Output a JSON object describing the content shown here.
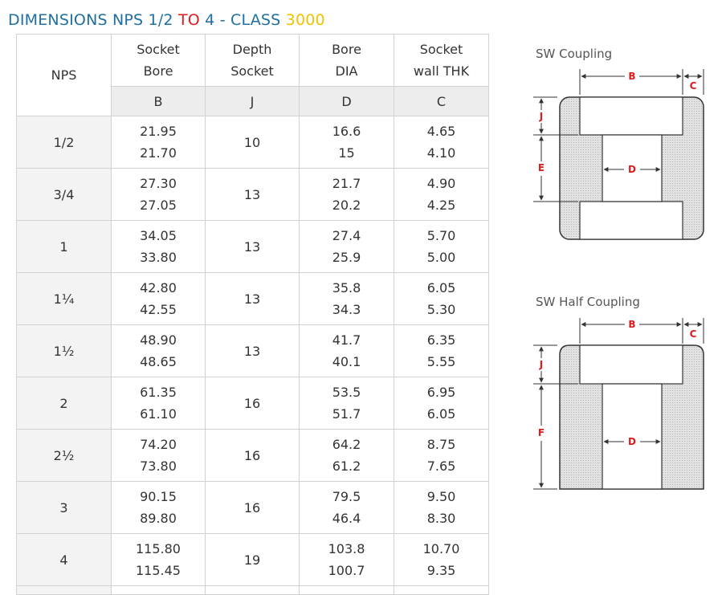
{
  "title": {
    "part1": "DIMENSIONS NPS 1/2 ",
    "part2": "TO",
    "part3": " 4 - CLASS ",
    "part4": "3000"
  },
  "table": {
    "nps_header": "NPS",
    "headers": [
      {
        "line1": "Socket",
        "line2": "Bore"
      },
      {
        "line1": "Depth",
        "line2": "Socket"
      },
      {
        "line1": "Bore",
        "line2": "DIA"
      },
      {
        "line1": "Socket",
        "line2": "wall THK"
      }
    ],
    "symbols": [
      "B",
      "J",
      "D",
      "C"
    ],
    "rows": [
      {
        "nps": "1/2",
        "b": [
          "21.95",
          "21.70"
        ],
        "j": "10",
        "d": [
          "16.6",
          "15"
        ],
        "c": [
          "4.65",
          "4.10"
        ]
      },
      {
        "nps": "3/4",
        "b": [
          "27.30",
          "27.05"
        ],
        "j": "13",
        "d": [
          "21.7",
          "20.2"
        ],
        "c": [
          "4.90",
          "4.25"
        ]
      },
      {
        "nps": "1",
        "b": [
          "34.05",
          "33.80"
        ],
        "j": "13",
        "d": [
          "27.4",
          "25.9"
        ],
        "c": [
          "5.70",
          "5.00"
        ]
      },
      {
        "nps": "1¼",
        "b": [
          "42.80",
          "42.55"
        ],
        "j": "13",
        "d": [
          "35.8",
          "34.3"
        ],
        "c": [
          "6.05",
          "5.30"
        ]
      },
      {
        "nps": "1½",
        "b": [
          "48.90",
          "48.65"
        ],
        "j": "13",
        "d": [
          "41.7",
          "40.1"
        ],
        "c": [
          "6.35",
          "5.55"
        ]
      },
      {
        "nps": "2",
        "b": [
          "61.35",
          "61.10"
        ],
        "j": "16",
        "d": [
          "53.5",
          "51.7"
        ],
        "c": [
          "6.95",
          "6.05"
        ]
      },
      {
        "nps": "2½",
        "b": [
          "74.20",
          "73.80"
        ],
        "j": "16",
        "d": [
          "64.2",
          "61.2"
        ],
        "c": [
          "8.75",
          "7.65"
        ]
      },
      {
        "nps": "3",
        "b": [
          "90.15",
          "89.80"
        ],
        "j": "16",
        "d": [
          "79.5",
          "46.4"
        ],
        "c": [
          "9.50",
          "8.30"
        ]
      },
      {
        "nps": "4",
        "b": [
          "115.80",
          "115.45"
        ],
        "j": "19",
        "d": [
          "103.8",
          "100.7"
        ],
        "c": [
          "10.70",
          "9.35"
        ]
      }
    ]
  },
  "diagrams": {
    "coupling_label": "SW Coupling",
    "half_coupling_label": "SW Half Coupling",
    "dims": {
      "b": "B",
      "c": "C",
      "j": "J",
      "e": "E",
      "d": "D",
      "f": "F"
    }
  },
  "colors": {
    "title_blue": "#1f6fa3",
    "title_red": "#e01b1b",
    "title_gold": "#f2c200",
    "symbol_blue": "#2a86c8",
    "dimension_red": "#e01b1b"
  }
}
